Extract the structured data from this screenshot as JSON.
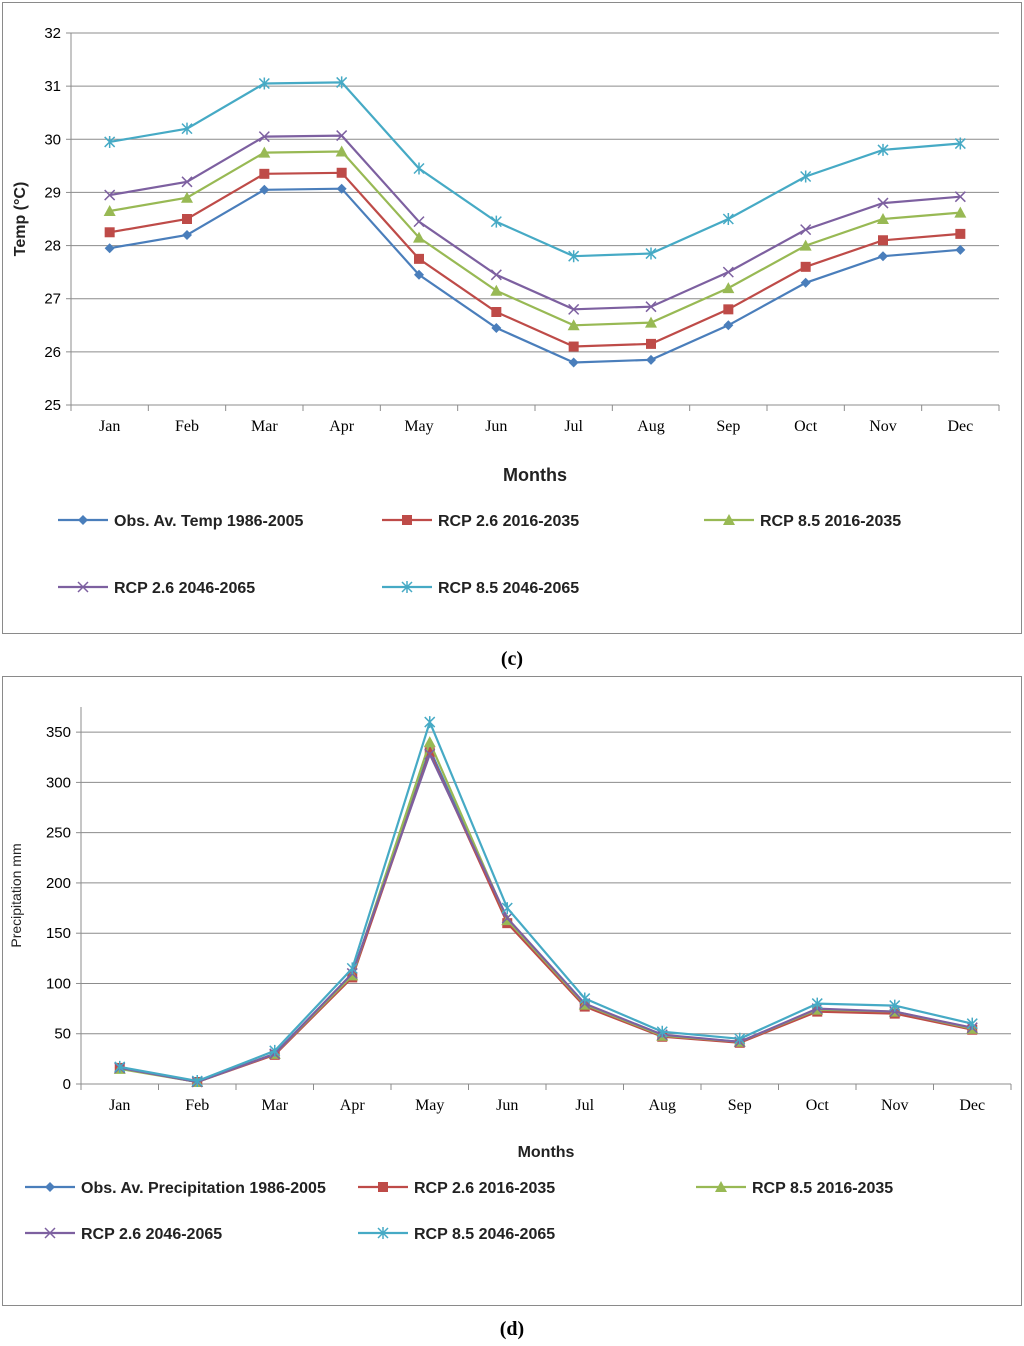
{
  "chart_data": [
    {
      "type": "line",
      "caption": "(c)",
      "xlabel": "Months",
      "ylabel": "Temp (°C)",
      "ylim": [
        25,
        32
      ],
      "yticks": [
        "25",
        "26",
        "27",
        "28",
        "29",
        "30",
        "31",
        "32"
      ],
      "grid": true,
      "legend_position": "bottom",
      "categories": [
        "Jan",
        "Feb",
        "Mar",
        "Apr",
        "May",
        "Jun",
        "Jul",
        "Aug",
        "Sep",
        "Oct",
        "Nov",
        "Dec"
      ],
      "series": [
        {
          "name": "Obs. Av. Temp 1986-2005",
          "color": "#4a7ebb",
          "marker": "diamond",
          "values": [
            27.95,
            28.2,
            29.05,
            29.07,
            27.45,
            26.45,
            25.8,
            25.85,
            26.5,
            27.3,
            27.8,
            27.92
          ]
        },
        {
          "name": "RCP 2.6 2016-2035",
          "color": "#be4b48",
          "marker": "square",
          "values": [
            28.25,
            28.5,
            29.35,
            29.37,
            27.75,
            26.75,
            26.1,
            26.15,
            26.8,
            27.6,
            28.1,
            28.22
          ]
        },
        {
          "name": "RCP 8.5 2016-2035",
          "color": "#98b954",
          "marker": "triangle",
          "values": [
            28.65,
            28.9,
            29.75,
            29.77,
            28.15,
            27.15,
            26.5,
            26.55,
            27.2,
            28.0,
            28.5,
            28.62
          ]
        },
        {
          "name": "RCP 2.6 2046-2065",
          "color": "#7d60a0",
          "marker": "x",
          "values": [
            28.95,
            29.2,
            30.05,
            30.07,
            28.45,
            27.45,
            26.8,
            26.85,
            27.5,
            28.3,
            28.8,
            28.92
          ]
        },
        {
          "name": "RCP 8.5 2046-2065",
          "color": "#46aac5",
          "marker": "star",
          "values": [
            29.95,
            30.2,
            31.05,
            31.07,
            29.45,
            28.45,
            27.8,
            27.85,
            28.5,
            29.3,
            29.8,
            29.92
          ]
        }
      ]
    },
    {
      "type": "line",
      "caption": "(d)",
      "xlabel": "Months",
      "ylabel": "Precipitation mm",
      "ylim": [
        0,
        375
      ],
      "yticks": [
        "0",
        "50",
        "100",
        "150",
        "200",
        "250",
        "300",
        "350"
      ],
      "grid": true,
      "legend_position": "bottom",
      "categories": [
        "Jan",
        "Feb",
        "Mar",
        "Apr",
        "May",
        "Jun",
        "Jul",
        "Aug",
        "Sep",
        "Oct",
        "Nov",
        "Dec"
      ],
      "series": [
        {
          "name": "Obs. Av. Precipitation 1986-2005",
          "color": "#4a7ebb",
          "marker": "diamond",
          "values": [
            16,
            2,
            30,
            107,
            333,
            162,
            78,
            48,
            42,
            73,
            71,
            55
          ]
        },
        {
          "name": "RCP 2.6 2016-2035",
          "color": "#be4b48",
          "marker": "square",
          "values": [
            16,
            2,
            29,
            106,
            330,
            160,
            77,
            47,
            41,
            72,
            70,
            54
          ]
        },
        {
          "name": "RCP 8.5 2016-2035",
          "color": "#98b954",
          "marker": "triangle",
          "values": [
            15,
            2,
            30,
            108,
            340,
            163,
            79,
            48,
            42,
            74,
            72,
            55
          ]
        },
        {
          "name": "RCP 2.6 2046-2065",
          "color": "#7d60a0",
          "marker": "x",
          "values": [
            16,
            2,
            30,
            110,
            328,
            165,
            80,
            49,
            42,
            75,
            72,
            56
          ]
        },
        {
          "name": "RCP 8.5 2046-2065",
          "color": "#46aac5",
          "marker": "star",
          "values": [
            17,
            3,
            33,
            115,
            360,
            175,
            85,
            52,
            45,
            80,
            78,
            60
          ]
        }
      ]
    }
  ]
}
